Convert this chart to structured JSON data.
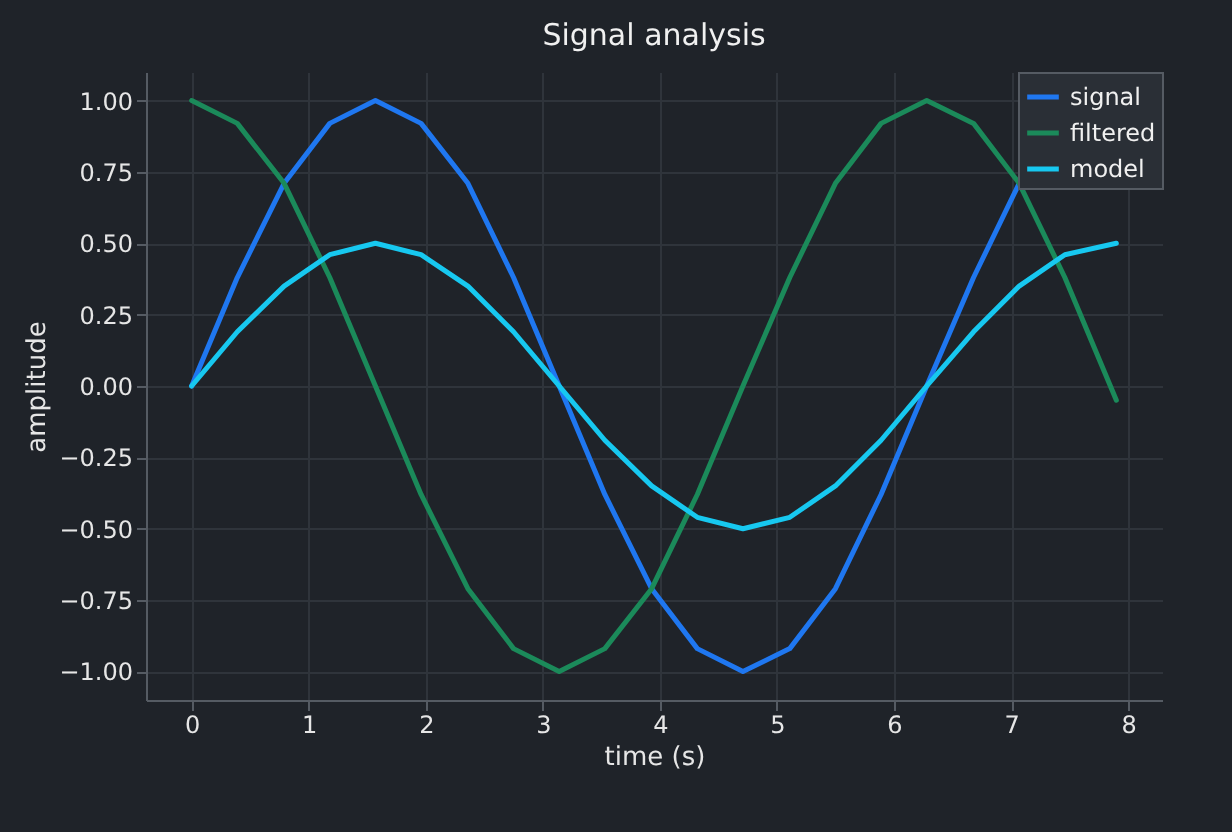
{
  "chart_data": {
    "type": "line",
    "title": "Signal analysis",
    "xlabel": "time (s)",
    "ylabel": "amplitude",
    "x": [
      0,
      0.39,
      0.79,
      1.18,
      1.57,
      1.96,
      2.36,
      2.75,
      3.14,
      3.53,
      3.93,
      4.32,
      4.71,
      5.11,
      5.5,
      5.89,
      6.28,
      6.68,
      7.07,
      7.46,
      7.9
    ],
    "series": [
      {
        "name": "signal",
        "color": "#1f77f0",
        "values": [
          0,
          0.38,
          0.71,
          0.92,
          1,
          0.92,
          0.71,
          0.38,
          0,
          -0.38,
          -0.71,
          -0.92,
          -1,
          -0.92,
          -0.71,
          -0.38,
          0,
          0.38,
          0.71,
          null,
          null
        ]
      },
      {
        "name": "filtered",
        "color": "#1b8a5a",
        "values": [
          1,
          0.92,
          0.71,
          0.38,
          0,
          -0.38,
          -0.71,
          -0.92,
          -1,
          -0.92,
          -0.71,
          -0.38,
          0,
          0.38,
          0.71,
          0.92,
          1,
          0.92,
          0.71,
          0.38,
          -0.05
        ]
      },
      {
        "name": "model",
        "color": "#17c8f0",
        "values": [
          0,
          0.19,
          0.35,
          0.46,
          0.5,
          0.46,
          0.35,
          0.19,
          0,
          -0.19,
          -0.35,
          -0.46,
          -0.5,
          -0.46,
          -0.35,
          -0.19,
          0,
          0.19,
          0.35,
          0.46,
          0.5
        ]
      }
    ],
    "xlim": [
      -0.39,
      8.29
    ],
    "xticks": [
      0,
      1,
      2,
      3,
      4,
      5,
      6,
      7,
      8
    ],
    "ylim": [
      -1.1,
      1.1
    ],
    "yticks": [
      {
        "value": -1,
        "label": "−1.00"
      },
      {
        "value": -0.75,
        "label": "−0.75"
      },
      {
        "value": -0.5,
        "label": "−0.50"
      },
      {
        "value": -0.25,
        "label": "−0.25"
      },
      {
        "value": 0,
        "label": "0.00"
      },
      {
        "value": 0.25,
        "label": "0.25"
      },
      {
        "value": 0.5,
        "label": "0.50"
      },
      {
        "value": 0.75,
        "label": "0.75"
      },
      {
        "value": 1,
        "label": "1.00"
      }
    ],
    "grid": true,
    "legend": "top right",
    "line_style": "solid",
    "marker": "none"
  }
}
